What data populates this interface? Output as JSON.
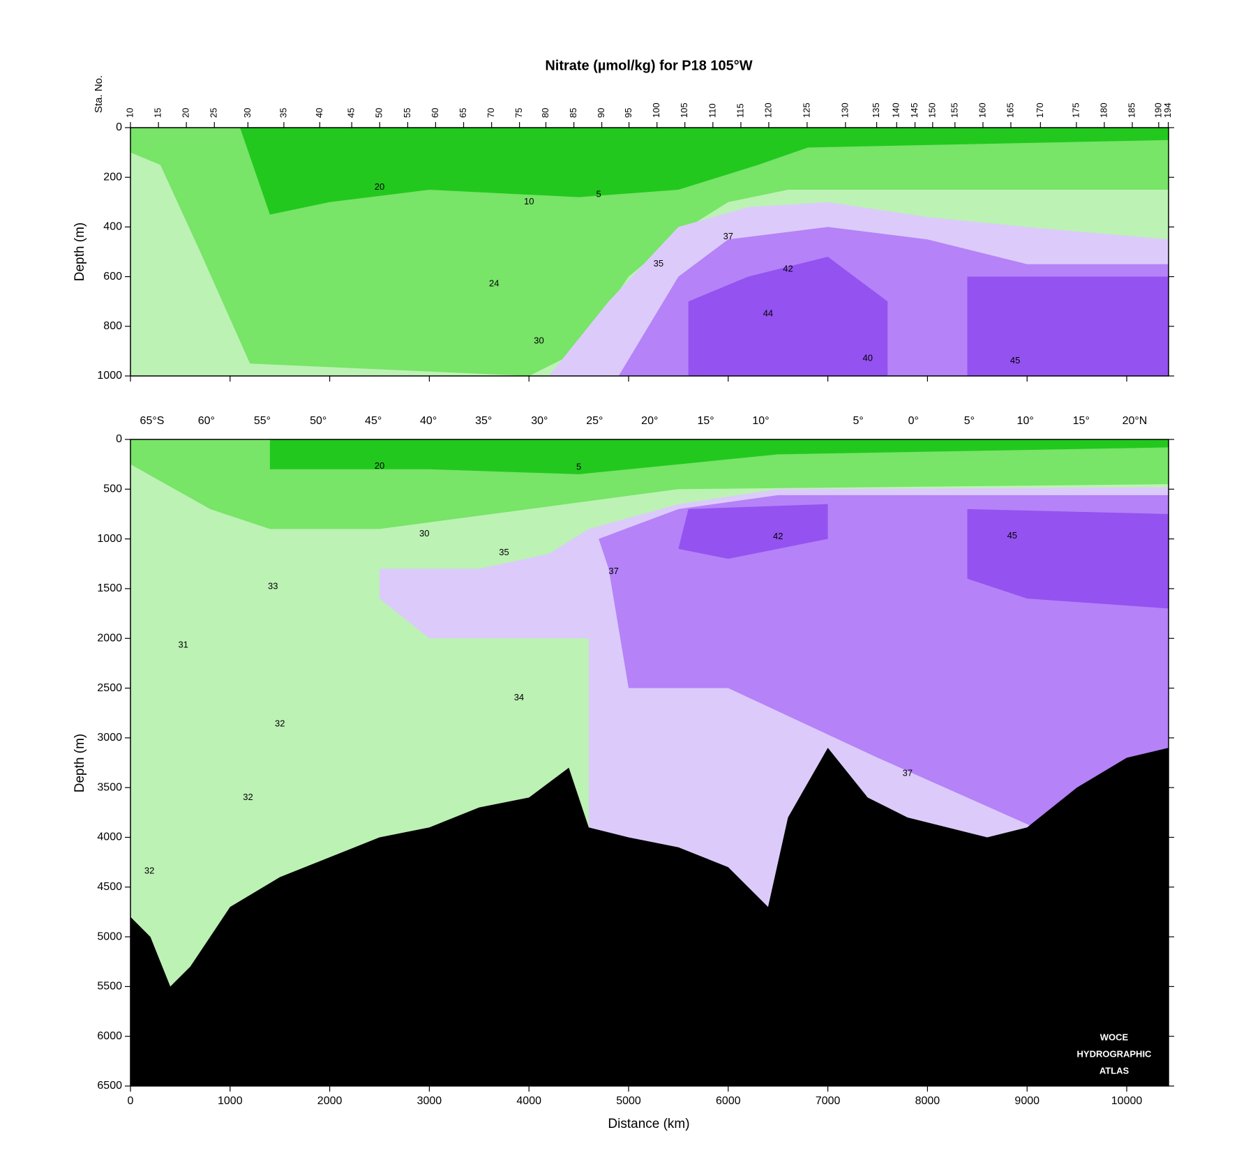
{
  "chart_data": [
    {
      "type": "contour",
      "title": "Nitrate (µmol/kg) for P18 105°W",
      "ylabel": "Depth (m)",
      "xlim": [
        0,
        10420
      ],
      "ylim": [
        0,
        1000
      ],
      "yticks": [
        0,
        200,
        400,
        600,
        800,
        1000
      ],
      "stations": {
        "label": "Sta. No.",
        "numbers": [
          10,
          15,
          20,
          25,
          30,
          35,
          40,
          45,
          50,
          55,
          60,
          65,
          70,
          75,
          80,
          85,
          90,
          95,
          100,
          105,
          110,
          115,
          120,
          125,
          130,
          135,
          140,
          145,
          150,
          155,
          160,
          165,
          170,
          175,
          180,
          185,
          190,
          194
        ],
        "x": [
          0,
          281,
          561,
          842,
          1179,
          1540,
          1900,
          2221,
          2502,
          2783,
          3063,
          3344,
          3625,
          3905,
          4170,
          4451,
          4731,
          5004,
          5285,
          5565,
          5846,
          6127,
          6407,
          6792,
          7177,
          7490,
          7691,
          7875,
          8052,
          8276,
          8557,
          8837,
          9134,
          9495,
          9775,
          10056,
          10321,
          10417
        ]
      },
      "contour_labels": [
        {
          "value": 20,
          "x": 2500,
          "y": 240
        },
        {
          "value": 10,
          "x": 4000,
          "y": 300
        },
        {
          "value": 5,
          "x": 4700,
          "y": 270
        },
        {
          "value": 37,
          "x": 6000,
          "y": 440
        },
        {
          "value": 42,
          "x": 6600,
          "y": 570
        },
        {
          "value": 35,
          "x": 5300,
          "y": 550
        },
        {
          "value": 24,
          "x": 3650,
          "y": 630
        },
        {
          "value": 44,
          "x": 6400,
          "y": 750
        },
        {
          "value": 30,
          "x": 4100,
          "y": 860
        },
        {
          "value": 40,
          "x": 7400,
          "y": 930
        },
        {
          "value": 45,
          "x": 8880,
          "y": 940
        }
      ]
    },
    {
      "type": "contour",
      "ylabel": "Depth (m)",
      "xlabel": "Distance (km)",
      "xlim": [
        0,
        10420
      ],
      "ylim": [
        0,
        6500
      ],
      "xticks": [
        0,
        1000,
        2000,
        3000,
        4000,
        5000,
        6000,
        7000,
        8000,
        9000,
        10000
      ],
      "yticks": [
        0,
        500,
        1000,
        1500,
        2000,
        2500,
        3000,
        3500,
        4000,
        4500,
        5000,
        5500,
        6000,
        6500
      ],
      "latitudes": {
        "labels": [
          "65°S",
          "60°",
          "55°",
          "50°",
          "45°",
          "40°",
          "35°",
          "30°",
          "25°",
          "20°",
          "15°",
          "10°",
          "5°",
          "0°",
          "5°",
          "10°",
          "15°",
          "20°N"
        ],
        "x": [
          217,
          762,
          1323,
          1885,
          2438,
          2991,
          3545,
          4106,
          4659,
          5212,
          5774,
          6327,
          7305,
          7859,
          8420,
          8982,
          9543,
          10080
        ]
      },
      "contour_labels": [
        {
          "value": 20,
          "x": 2500,
          "y": 270
        },
        {
          "value": 5,
          "x": 4500,
          "y": 280
        },
        {
          "value": 30,
          "x": 2950,
          "y": 950
        },
        {
          "value": 42,
          "x": 6500,
          "y": 980
        },
        {
          "value": 45,
          "x": 8850,
          "y": 970
        },
        {
          "value": 35,
          "x": 3750,
          "y": 1140
        },
        {
          "value": 37,
          "x": 4850,
          "y": 1330
        },
        {
          "value": 33,
          "x": 1430,
          "y": 1480
        },
        {
          "value": 31,
          "x": 530,
          "y": 2070
        },
        {
          "value": 34,
          "x": 3900,
          "y": 2600
        },
        {
          "value": 32,
          "x": 1500,
          "y": 2860
        },
        {
          "value": 37,
          "x": 7800,
          "y": 3360
        },
        {
          "value": 32,
          "x": 1180,
          "y": 3600
        },
        {
          "value": 32,
          "x": 190,
          "y": 4340
        }
      ],
      "bathymetry": {
        "x": [
          0,
          200,
          400,
          600,
          800,
          1000,
          1500,
          2000,
          2500,
          3000,
          3500,
          4000,
          4400,
          4600,
          5000,
          5500,
          6000,
          6400,
          6600,
          7000,
          7400,
          7800,
          8200,
          8600,
          9000,
          9500,
          10000,
          10420
        ],
        "values": [
          4800,
          5000,
          5500,
          5300,
          5000,
          4700,
          4400,
          4200,
          4000,
          3900,
          3700,
          3600,
          3300,
          3900,
          4000,
          4100,
          4300,
          4700,
          3800,
          3100,
          3600,
          3800,
          3900,
          4000,
          3900,
          3500,
          3200,
          3100
        ]
      },
      "watermark": [
        "WOCE",
        "HYDROGRAPHIC",
        "ATLAS"
      ]
    }
  ]
}
